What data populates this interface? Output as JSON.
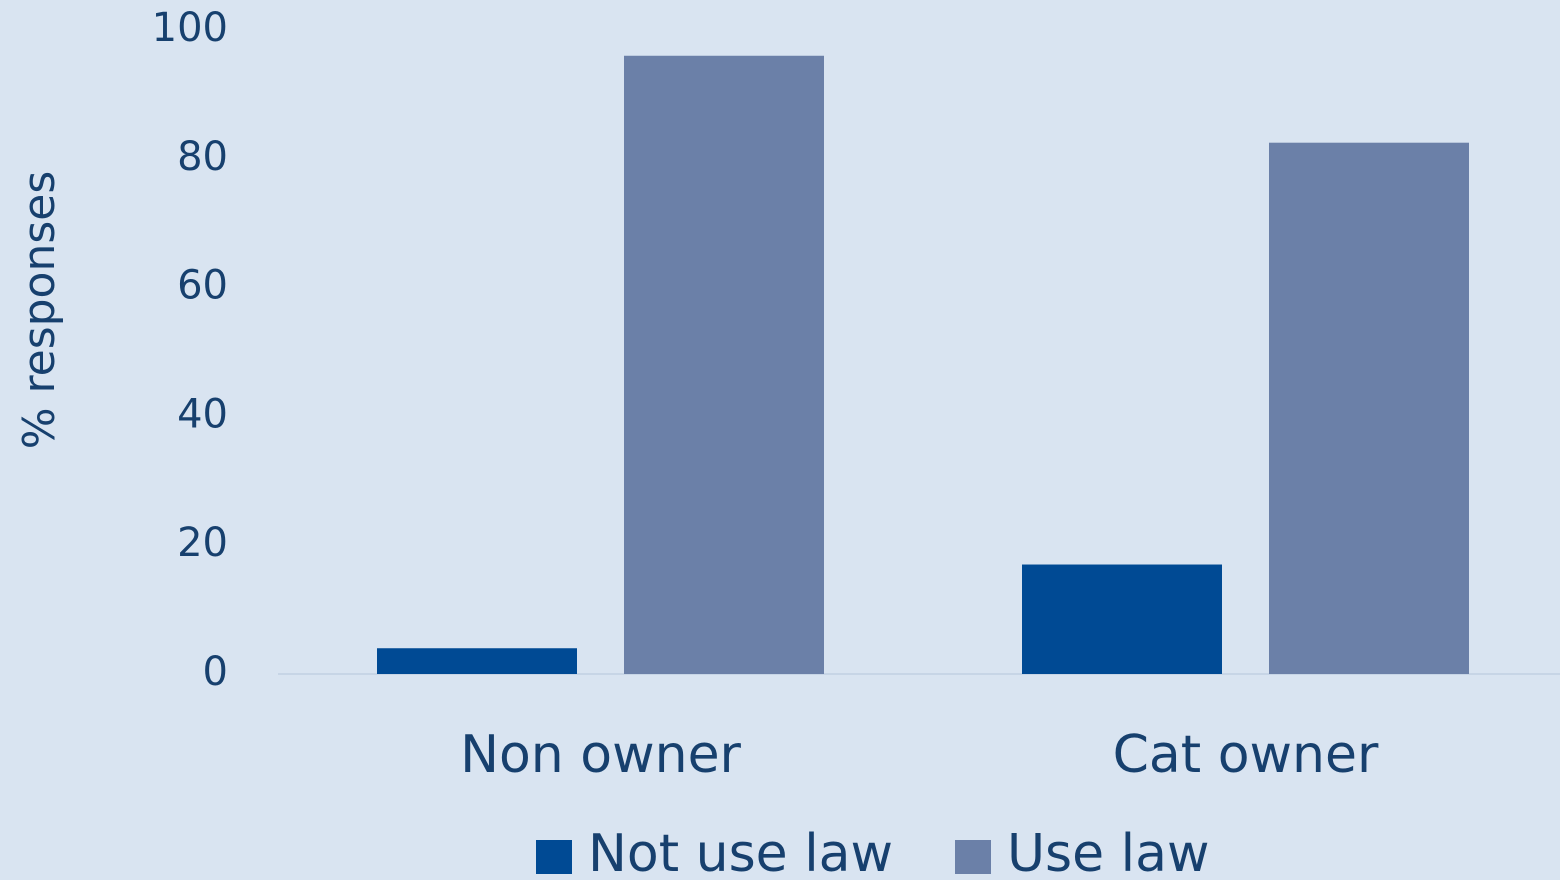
{
  "chart_data": {
    "type": "bar",
    "y_label": "% responses",
    "categories": [
      "Non owner",
      "Cat owner"
    ],
    "series": [
      {
        "name": "Not use law",
        "color": "#004a94",
        "values": [
          4,
          17
        ]
      },
      {
        "name": "Use law",
        "color": "#6b80a8",
        "values": [
          96,
          82.5
        ]
      }
    ],
    "ylim": [
      0,
      100
    ],
    "yticks": [
      0,
      20,
      40,
      60,
      80,
      100
    ],
    "grid": false,
    "legend": "bottom"
  }
}
